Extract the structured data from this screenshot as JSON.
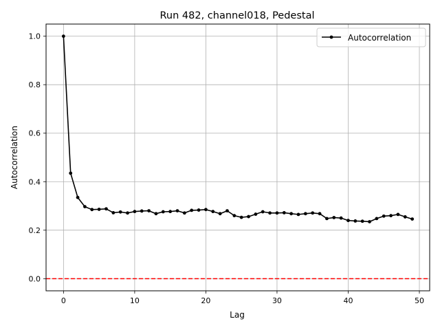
{
  "chart_data": {
    "type": "line",
    "title": "Run 482, channel018, Pedestal",
    "xlabel": "Lag",
    "ylabel": "Autocorrelation",
    "xlim": [
      -2.45,
      51.45
    ],
    "ylim": [
      -0.05,
      1.05
    ],
    "x_ticks": [
      0,
      10,
      20,
      30,
      40,
      50
    ],
    "y_ticks": [
      0.0,
      0.2,
      0.4,
      0.6,
      0.8,
      1.0
    ],
    "x_tick_labels": [
      "0",
      "10",
      "20",
      "30",
      "40",
      "50"
    ],
    "y_tick_labels": [
      "0.0",
      "0.2",
      "0.4",
      "0.6",
      "0.8",
      "1.0"
    ],
    "grid": true,
    "legend": {
      "position": "top-right",
      "entries": [
        "Autocorrelation"
      ]
    },
    "reference_line": {
      "y": 0.0,
      "color": "#ff0000",
      "style": "dashed"
    },
    "series": [
      {
        "name": "Autocorrelation",
        "color": "#000000",
        "x": [
          0,
          1,
          2,
          3,
          4,
          5,
          6,
          7,
          8,
          9,
          10,
          11,
          12,
          13,
          14,
          15,
          16,
          17,
          18,
          19,
          20,
          21,
          22,
          23,
          24,
          25,
          26,
          27,
          28,
          29,
          30,
          31,
          32,
          33,
          34,
          35,
          36,
          37,
          38,
          39,
          40,
          41,
          42,
          43,
          44,
          45,
          46,
          47,
          48,
          49
        ],
        "values": [
          1.0,
          0.435,
          0.335,
          0.297,
          0.285,
          0.286,
          0.288,
          0.272,
          0.275,
          0.271,
          0.277,
          0.279,
          0.28,
          0.268,
          0.276,
          0.277,
          0.28,
          0.271,
          0.282,
          0.283,
          0.285,
          0.277,
          0.268,
          0.28,
          0.26,
          0.253,
          0.256,
          0.266,
          0.276,
          0.271,
          0.271,
          0.272,
          0.268,
          0.265,
          0.268,
          0.271,
          0.268,
          0.248,
          0.252,
          0.25,
          0.24,
          0.238,
          0.237,
          0.235,
          0.248,
          0.258,
          0.26,
          0.265,
          0.255,
          0.246
        ]
      }
    ]
  }
}
